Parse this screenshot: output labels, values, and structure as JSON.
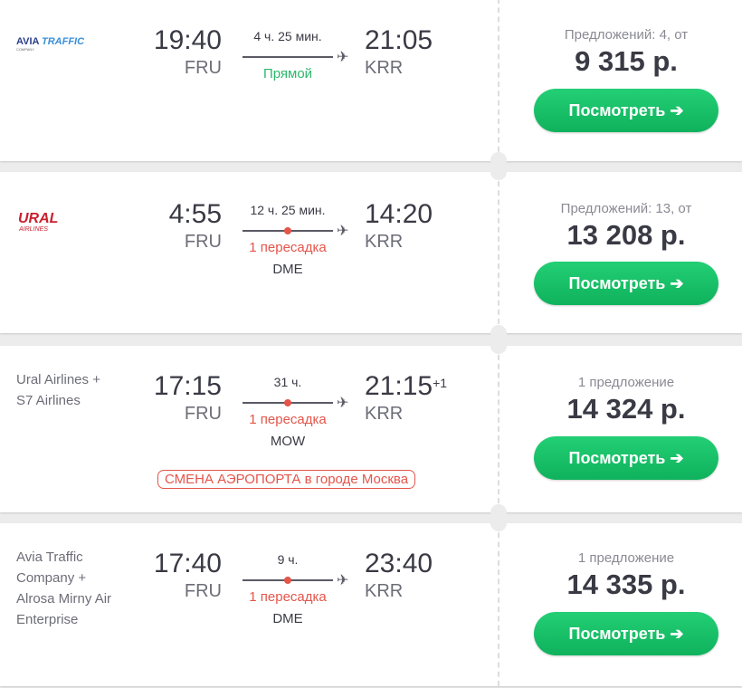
{
  "button_label": "Посмотреть",
  "arrow": "➔",
  "plane": "✈",
  "flights": [
    {
      "airline": "AVIA TRAFFIC COMPANY",
      "logo": "avia-traffic",
      "dep_time": "19:40",
      "dep_code": "FRU",
      "duration": "4 ч. 25 мин.",
      "stops": "Прямой",
      "via": "",
      "arr_time": "21:05",
      "arr_plus": "",
      "arr_code": "KRR",
      "offers": "Предложений: 4, от",
      "price": "9 315 р."
    },
    {
      "airline": "URAL AIRLINES",
      "logo": "ural-airlines",
      "dep_time": "4:55",
      "dep_code": "FRU",
      "duration": "12 ч. 25 мин.",
      "stops": "1 пересадка",
      "via": "DME",
      "arr_time": "14:20",
      "arr_plus": "",
      "arr_code": "KRR",
      "offers": "Предложений: 13, от",
      "price": "13 208 р."
    },
    {
      "airline": "Ural Airlines + S7 Airlines",
      "dep_time": "17:15",
      "dep_code": "FRU",
      "duration": "31 ч.",
      "stops": "1 пересадка",
      "via": "MOW",
      "warning": "СМЕНА АЭРОПОРТА в городе Москва",
      "arr_time": "21:15",
      "arr_plus": "+1",
      "arr_code": "KRR",
      "offers": "1 предложение",
      "price": "14 324 р."
    },
    {
      "airline": "Avia Traffic Company + Alrosa Mirny Air Enterprise",
      "dep_time": "17:40",
      "dep_code": "FRU",
      "duration": "9 ч.",
      "stops": "1 пересадка",
      "via": "DME",
      "arr_time": "23:40",
      "arr_plus": "",
      "arr_code": "KRR",
      "offers": "1 предложение",
      "price": "14 335 р."
    }
  ],
  "colors": {
    "accent": "#1cc46b",
    "transfer": "#e4554a",
    "direct": "#2db76b"
  }
}
